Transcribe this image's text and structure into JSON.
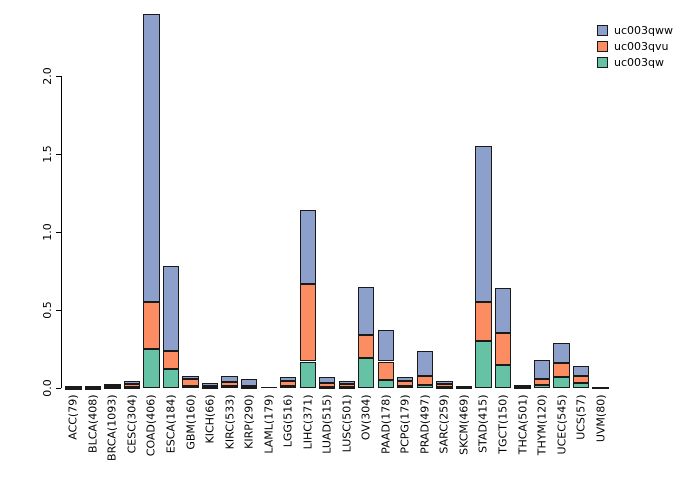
{
  "chart_data": {
    "type": "bar",
    "stacked": true,
    "title": "",
    "xlabel": "",
    "ylabel": "",
    "ylim": [
      0,
      2.4
    ],
    "yticks": [
      "0.0",
      "0.5",
      "1.0",
      "1.5",
      "2.0"
    ],
    "ytick_values": [
      0.0,
      0.5,
      1.0,
      1.5,
      2.0
    ],
    "grid": false,
    "legend_position": "top-right",
    "x_label_rotation_deg": 90,
    "axis_color": "#000000",
    "categories": [
      "ACC(79)",
      "BLCA(408)",
      "BRCA(1093)",
      "CESC(304)",
      "COAD(406)",
      "ESCA(184)",
      "GBM(160)",
      "KICH(66)",
      "KIRC(533)",
      "KIRP(290)",
      "LAML(179)",
      "LGG(516)",
      "LIHC(371)",
      "LUAD(515)",
      "LUSC(501)",
      "OV(304)",
      "PAAD(178)",
      "PCPG(179)",
      "PRAD(497)",
      "SARC(259)",
      "SKCM(469)",
      "STAD(415)",
      "TGCT(150)",
      "THCA(501)",
      "THYM(120)",
      "UCEC(545)",
      "UCS(57)",
      "UVM(80)"
    ],
    "series": [
      {
        "name": "uc003qw",
        "color": "#66C2A5",
        "stack_order": "bottom",
        "values": [
          0.003,
          0.003,
          0.004,
          0.008,
          0.25,
          0.12,
          0.015,
          0.005,
          0.01,
          0.005,
          0.002,
          0.01,
          0.17,
          0.008,
          0.008,
          0.19,
          0.05,
          0.01,
          0.02,
          0.008,
          0.002,
          0.3,
          0.15,
          0.005,
          0.02,
          0.07,
          0.03,
          0.002
        ]
      },
      {
        "name": "uc003qvu",
        "color": "#FC8D62",
        "stack_order": "middle",
        "values": [
          0.004,
          0.005,
          0.012,
          0.015,
          0.3,
          0.12,
          0.045,
          0.008,
          0.03,
          0.01,
          0.002,
          0.035,
          0.5,
          0.022,
          0.015,
          0.15,
          0.12,
          0.035,
          0.06,
          0.018,
          0.004,
          0.25,
          0.2,
          0.007,
          0.04,
          0.09,
          0.05,
          0.002
        ]
      },
      {
        "name": "uc003qww",
        "color": "#8DA0CB",
        "stack_order": "top",
        "values": [
          0.005,
          0.005,
          0.008,
          0.02,
          1.85,
          0.54,
          0.02,
          0.022,
          0.035,
          0.045,
          0.002,
          0.025,
          0.47,
          0.04,
          0.02,
          0.31,
          0.2,
          0.025,
          0.16,
          0.018,
          0.004,
          1.0,
          0.29,
          0.01,
          0.12,
          0.13,
          0.06,
          0.003
        ]
      }
    ],
    "legend": [
      {
        "label": "uc003qww",
        "color": "#8DA0CB"
      },
      {
        "label": "uc003qvu",
        "color": "#FC8D62"
      },
      {
        "label": "uc003qw",
        "color": "#66C2A5"
      }
    ]
  }
}
